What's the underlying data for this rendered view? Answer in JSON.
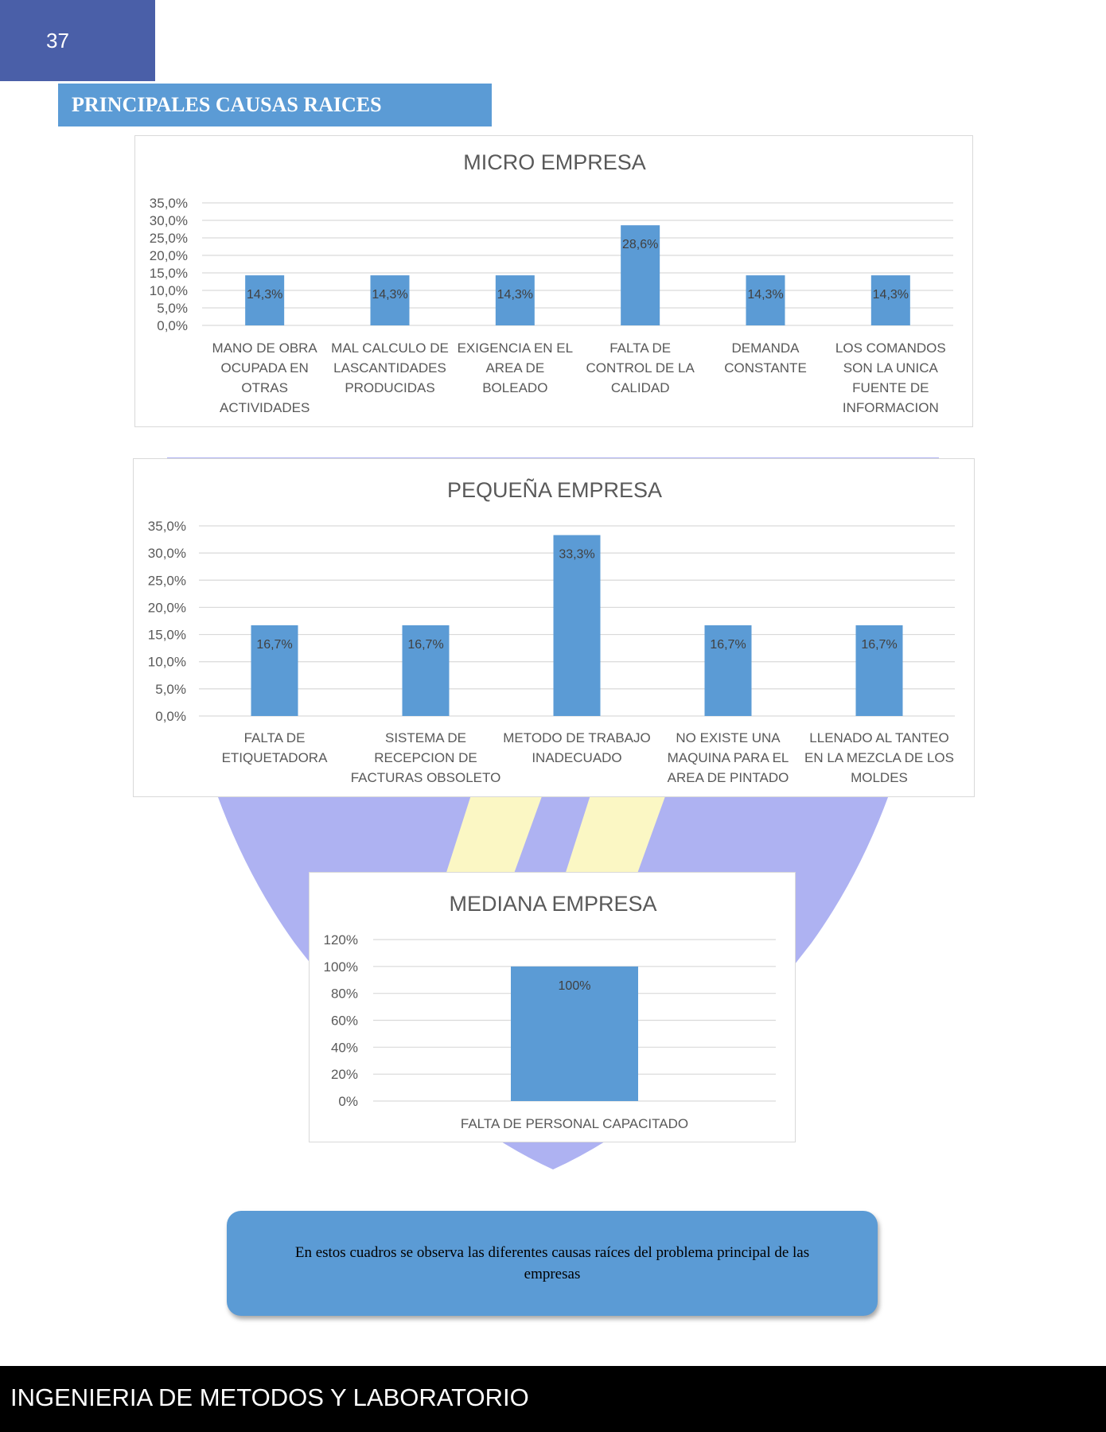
{
  "page_number": "37",
  "section_title": "PRINCIPALES CAUSAS RAICES",
  "footer": "INGENIERIA DE METODOS Y LABORATORIO",
  "note": "En estos cuadros se observa las diferentes causas raíces del problema principal de las empresas",
  "colors": {
    "bar": "#5b9bd5",
    "header": "#4a5fa8",
    "grid": "#d9d9d9"
  },
  "chart_data": [
    {
      "type": "bar",
      "title": "MICRO EMPRESA",
      "categories": [
        [
          "MANO DE OBRA",
          "OCUPADA EN",
          "OTRAS",
          "ACTIVIDADES"
        ],
        [
          "MAL CALCULO DE",
          "LASCANTIDADES",
          "PRODUCIDAS"
        ],
        [
          "EXIGENCIA EN EL",
          "AREA DE",
          "BOLEADO"
        ],
        [
          "FALTA DE",
          "CONTROL DE LA",
          "CALIDAD"
        ],
        [
          "DEMANDA",
          "CONSTANTE"
        ],
        [
          "LOS COMANDOS",
          "SON LA UNICA",
          "FUENTE DE",
          "INFORMACION"
        ]
      ],
      "values": [
        14.3,
        14.3,
        14.3,
        28.6,
        14.3,
        14.3
      ],
      "data_labels": [
        "14,3%",
        "14,3%",
        "14,3%",
        "28,6%",
        "14,3%",
        "14,3%"
      ],
      "yticks": [
        "0,0%",
        "5,0%",
        "10,0%",
        "15,0%",
        "20,0%",
        "25,0%",
        "30,0%",
        "35,0%"
      ],
      "ylim": [
        0,
        35
      ],
      "grid": true
    },
    {
      "type": "bar",
      "title": "PEQUEÑA EMPRESA",
      "categories": [
        [
          "FALTA DE",
          "ETIQUETADORA"
        ],
        [
          "SISTEMA DE",
          "RECEPCION DE",
          "FACTURAS OBSOLETO"
        ],
        [
          "METODO DE TRABAJO",
          "INADECUADO"
        ],
        [
          "NO EXISTE UNA",
          "MAQUINA PARA EL",
          "AREA DE PINTADO"
        ],
        [
          "LLENADO AL TANTEO",
          "EN LA MEZCLA DE LOS",
          "MOLDES"
        ]
      ],
      "values": [
        16.7,
        16.7,
        33.3,
        16.7,
        16.7
      ],
      "data_labels": [
        "16,7%",
        "16,7%",
        "33,3%",
        "16,7%",
        "16,7%"
      ],
      "yticks": [
        "0,0%",
        "5,0%",
        "10,0%",
        "15,0%",
        "20,0%",
        "25,0%",
        "30,0%",
        "35,0%"
      ],
      "ylim": [
        0,
        35
      ],
      "grid": true
    },
    {
      "type": "bar",
      "title": "MEDIANA EMPRESA",
      "categories": [
        [
          "FALTA DE PERSONAL CAPACITADO"
        ]
      ],
      "values": [
        100
      ],
      "data_labels": [
        "100%"
      ],
      "yticks": [
        "0%",
        "20%",
        "40%",
        "60%",
        "80%",
        "100%",
        "120%"
      ],
      "ylim": [
        0,
        120
      ],
      "grid": true
    }
  ]
}
